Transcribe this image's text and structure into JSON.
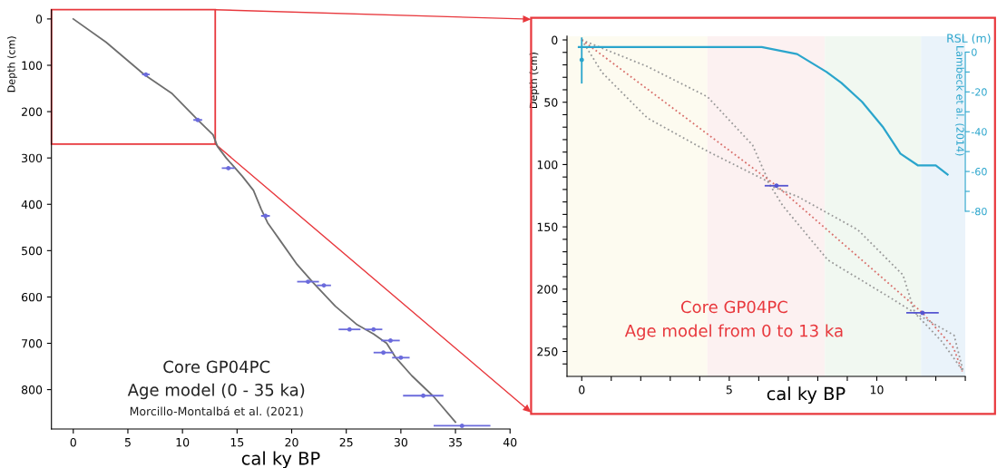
{
  "chart_data": [
    {
      "type": "line",
      "xlabel": "cal ky BP",
      "ylabel": "Depth (cm)",
      "xlim": [
        -2,
        40
      ],
      "ylim": [
        885,
        -20
      ],
      "xticks": [
        0,
        5,
        10,
        15,
        20,
        25,
        30,
        35,
        40
      ],
      "yticks": [
        0,
        100,
        200,
        300,
        400,
        500,
        600,
        700,
        800
      ],
      "grid": false,
      "legend": false,
      "annotations": [
        "Core GP04PC",
        "Age model (0 - 35 ka)",
        "Morcillo-Montalbá et al. (2021)"
      ],
      "series": [
        {
          "color": "#6e6e6e",
          "x": [
            0,
            3,
            6.5,
            9,
            11.5,
            12.8,
            13.2,
            14,
            15.5,
            16.5,
            17.2,
            17.8,
            19,
            20.5,
            22,
            24,
            26,
            27.5,
            28.7,
            29.5,
            31,
            33,
            35
          ],
          "values": [
            0,
            50,
            120,
            160,
            220,
            250,
            275,
            300,
            340,
            370,
            410,
            440,
            480,
            530,
            570,
            620,
            660,
            680,
            700,
            730,
            770,
            815,
            870
          ]
        },
        {
          "type": "scatter",
          "color": "#6b6bdc",
          "marker": "circle",
          "x": [
            6.65,
            11.4,
            14.2,
            17.6,
            21.5,
            22.95,
            25.3,
            27.5,
            29.05,
            28.4,
            30.0,
            32.05,
            35.6
          ],
          "values": [
            120,
            218,
            322,
            425,
            567,
            575,
            670,
            670,
            694,
            720,
            731,
            813,
            878
          ],
          "xerrors": [
            [
              6.3,
              7.0
            ],
            [
              11.0,
              11.8
            ],
            [
              13.6,
              14.8
            ],
            [
              17.2,
              18.0
            ],
            [
              20.5,
              22.5
            ],
            [
              22.3,
              23.6
            ],
            [
              24.3,
              26.3
            ],
            [
              26.7,
              28.3
            ],
            [
              28.2,
              29.9
            ],
            [
              27.5,
              29.3
            ],
            [
              29.2,
              30.8
            ],
            [
              30.2,
              33.9
            ],
            [
              33.0,
              38.2
            ]
          ]
        }
      ]
    },
    {
      "type": "line",
      "xlabel": "cal ky BP",
      "ylabel": "Depth (cm)",
      "y2label": "RSL (m)",
      "xlim": [
        -0.5,
        13
      ],
      "ylim": [
        270,
        -3
      ],
      "y2lim": [
        -163,
        8
      ],
      "xticks": [
        0,
        {
          "value": 1,
          "label": null
        },
        {
          "value": 2,
          "label": null
        },
        {
          "value": 3,
          "label": null
        },
        {
          "value": 4,
          "label": null
        },
        5,
        {
          "value": 6,
          "label": null
        },
        {
          "value": 7,
          "label": null
        },
        {
          "value": 8,
          "label": null
        },
        {
          "value": 9,
          "label": null
        },
        10,
        {
          "value": 11,
          "label": null
        },
        {
          "value": 12,
          "label": null
        },
        {
          "value": 13,
          "label": null
        }
      ],
      "yticks": [
        0,
        {
          "value": 10,
          "label": null
        },
        {
          "value": 20,
          "label": null
        },
        {
          "value": 30,
          "label": null
        },
        {
          "value": 40,
          "label": null
        },
        50,
        {
          "value": 60,
          "label": null
        },
        {
          "value": 70,
          "label": null
        },
        {
          "value": 80,
          "label": null
        },
        {
          "value": 90,
          "label": null
        },
        100,
        {
          "value": 110,
          "label": null
        },
        {
          "value": 120,
          "label": null
        },
        {
          "value": 130,
          "label": null
        },
        {
          "value": 140,
          "label": null
        },
        150,
        {
          "value": 160,
          "label": null
        },
        {
          "value": 170,
          "label": null
        },
        {
          "value": 180,
          "label": null
        },
        {
          "value": 190,
          "label": null
        },
        200,
        {
          "value": 210,
          "label": null
        },
        {
          "value": 220,
          "label": null
        },
        {
          "value": 230,
          "label": null
        },
        {
          "value": 240,
          "label": null
        },
        250,
        {
          "value": 260,
          "label": null
        }
      ],
      "y2ticks": [
        0,
        {
          "value": -10,
          "label": null
        },
        -20,
        {
          "value": -30,
          "label": null
        },
        -40,
        {
          "value": -50,
          "label": null
        },
        -60,
        {
          "value": -70,
          "label": null
        },
        -80
      ],
      "grid": false,
      "legend": false,
      "annotations": [
        "Lambeck et al. (2014)",
        "Core GP04PC",
        "Age model from 0 to 13 ka"
      ],
      "bands": [
        {
          "axis": "x",
          "from": -0.5,
          "to": 4.26,
          "color": "#fdfbf0"
        },
        {
          "axis": "x",
          "from": 4.26,
          "to": 8.24,
          "color": "#fcf1f1"
        },
        {
          "axis": "x",
          "from": 8.24,
          "to": 11.5,
          "color": "#f1f8f1"
        },
        {
          "axis": "x",
          "from": 11.5,
          "to": 13,
          "color": "#eaf3fa"
        }
      ],
      "series": [
        {
          "color": "#999999",
          "line_style": "dotted",
          "x": [
            0,
            2.22,
            4.26,
            5.79,
            6.4,
            7.32,
            9.36,
            10.89,
            11.29,
            12.62,
            12.93
          ],
          "values": [
            0,
            21.3,
            45.6,
            84.4,
            117.2,
            125.7,
            152.4,
            188.7,
            219.1,
            237,
            266
          ]
        },
        {
          "color": "#999999",
          "line_style": "dotted",
          "x": [
            0,
            0.69,
            2.22,
            4.26,
            6.3,
            6.4,
            6.81,
            8.34,
            10.38,
            11.29,
            12.21,
            12.93
          ],
          "values": [
            0,
            26.2,
            62.6,
            89.3,
            113.5,
            117.2,
            132.9,
            176.6,
            205.7,
            219.1,
            242.1,
            266
          ]
        },
        {
          "color": "#d9706c",
          "line_style": "dotted",
          "x": [
            0,
            6.6,
            11.55,
            12.6,
            12.9
          ],
          "values": [
            0,
            117,
            219,
            247,
            266
          ]
        },
        {
          "type": "scatter",
          "color": "#5555d0",
          "marker": "circle",
          "x": [
            6.6,
            11.55
          ],
          "values": [
            117,
            219
          ],
          "xerrors": [
            [
              6.2,
              7.0
            ],
            [
              11.0,
              12.1
            ]
          ]
        },
        {
          "type": "scatter",
          "color": "#2aa5cc",
          "marker": "circle",
          "x": [
            0
          ],
          "values": [
            16
          ],
          "errors": [
            [
              -2,
              35
            ]
          ]
        },
        {
          "axis": "y2",
          "color": "#2aa5cc",
          "x": [
            -0.1,
            6.1,
            7.3,
            8.3,
            8.8,
            9.5,
            10.2,
            10.8,
            11.4,
            12.0,
            12.4
          ],
          "values": [
            2.5,
            2.5,
            -1,
            -10,
            -15.5,
            -25,
            -37.5,
            -51,
            -57,
            -57,
            -61.5
          ]
        }
      ]
    }
  ]
}
